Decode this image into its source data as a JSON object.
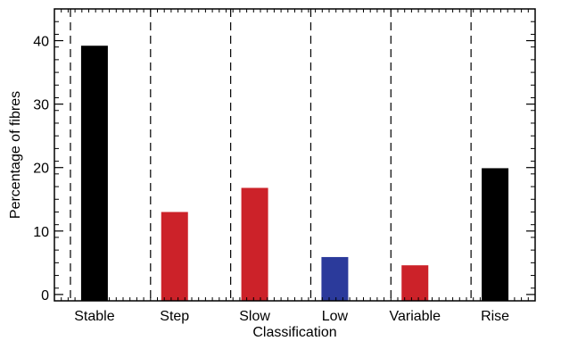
{
  "chart_data": {
    "type": "bar",
    "title": "",
    "xlabel": "Classification",
    "ylabel": "Percentage of fibres",
    "categories": [
      "Stable",
      "Step",
      "Slow",
      "Low",
      "Variable",
      "Rise"
    ],
    "values": [
      39.2,
      13.0,
      16.8,
      5.9,
      4.6,
      19.9
    ],
    "bar_colors": [
      "#000000",
      "#cc2229",
      "#cc2229",
      "#2b3a9b",
      "#cc2229",
      "#000000"
    ],
    "ylim": [
      -1,
      45
    ],
    "yticks": [
      0,
      10,
      20,
      30,
      40
    ],
    "ytick_labels": [
      "0",
      "10",
      "20",
      "30",
      "40"
    ],
    "xlim": [
      0,
      6
    ],
    "separator_positions": [
      0.2,
      1.2,
      2.2,
      3.2,
      4.2,
      5.2
    ],
    "grid": false,
    "legend": "none"
  }
}
